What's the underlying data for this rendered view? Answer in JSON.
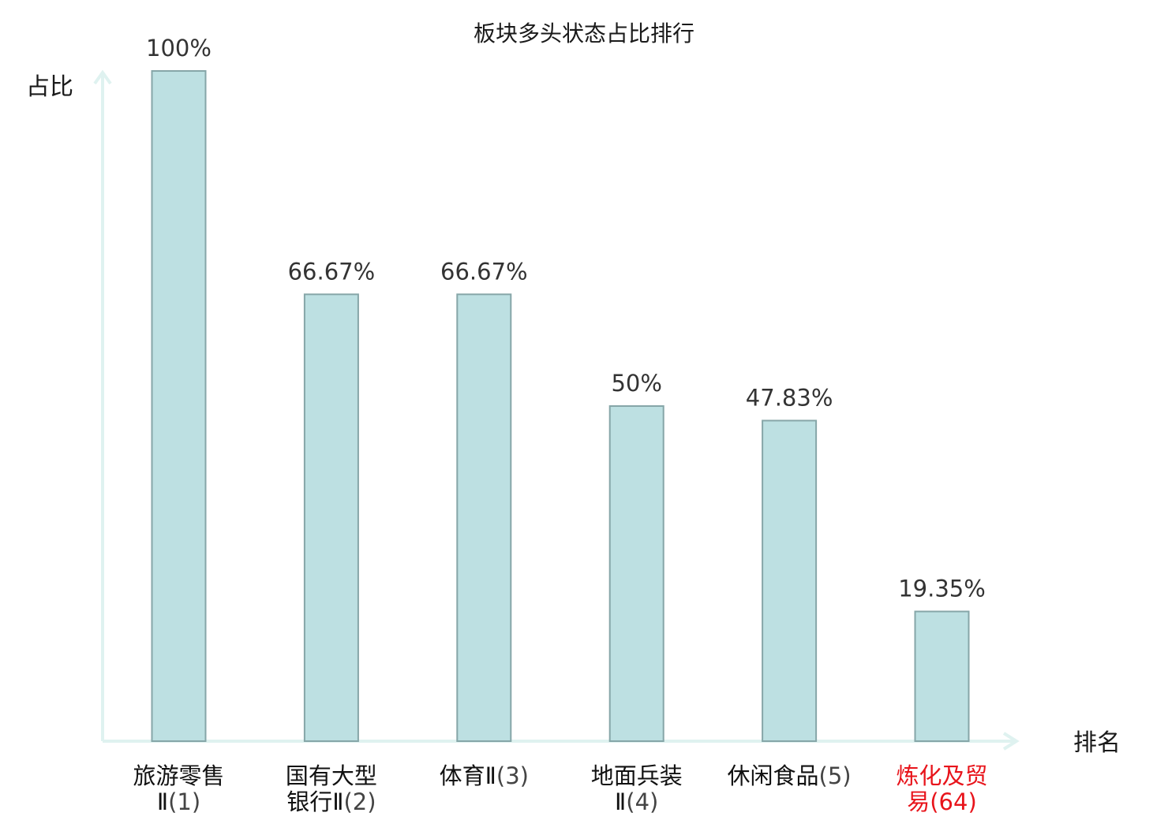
{
  "chart_data": {
    "type": "bar",
    "title": "板块多头状态占比排行",
    "ylabel": "占比",
    "xlabel": "排名",
    "ylim": [
      0,
      100
    ],
    "grid": false,
    "categories": [
      {
        "name": "旅游零售Ⅱ",
        "rank": "(1)",
        "lines": [
          "旅游零售",
          "Ⅱ(1)"
        ]
      },
      {
        "name": "国有大型银行Ⅱ",
        "rank": "(2)",
        "lines": [
          "国有大型",
          "银行Ⅱ(2)"
        ]
      },
      {
        "name": "体育Ⅱ",
        "rank": "(3)",
        "lines": [
          "体育Ⅱ(3)"
        ]
      },
      {
        "name": "地面兵装Ⅱ",
        "rank": "(4)",
        "lines": [
          "地面兵装",
          "Ⅱ(4)"
        ]
      },
      {
        "name": "休闲食品",
        "rank": "(5)",
        "lines": [
          "休闲食品(5)"
        ]
      },
      {
        "name": "炼化及贸易",
        "rank": "(64)",
        "lines": [
          "炼化及贸",
          "易(64)"
        ],
        "highlight": true
      }
    ],
    "values": [
      100,
      66.67,
      66.67,
      50,
      47.83,
      19.35
    ],
    "value_labels": [
      "100%",
      "66.67%",
      "66.67%",
      "50%",
      "47.83%",
      "19.35%"
    ]
  },
  "colors": {
    "bar_fill": "#bde0e2",
    "bar_stroke": "#86a6a8",
    "axis": "#dff2f0",
    "highlight_text": "#e8141b"
  }
}
